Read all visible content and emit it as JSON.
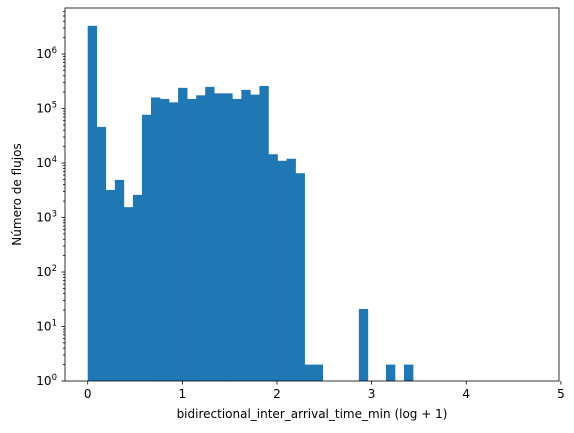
{
  "chart_data": {
    "type": "bar",
    "title": "",
    "xlabel": "bidirectional_inter_arrival_time_min (log + 1)",
    "ylabel": "Número de flujos",
    "xlim": [
      -0.24,
      4.98
    ],
    "ylim": [
      1,
      7000000
    ],
    "yscale": "log",
    "grid": false,
    "legend": "none",
    "bar_color": "#1f77b4",
    "bin_width": 0.0955,
    "bins": [
      {
        "x0": 0.0,
        "count": 3300000
      },
      {
        "x0": 0.0955,
        "count": 46000
      },
      {
        "x0": 0.191,
        "count": 3200
      },
      {
        "x0": 0.2865,
        "count": 4900
      },
      {
        "x0": 0.382,
        "count": 1550
      },
      {
        "x0": 0.4775,
        "count": 2600
      },
      {
        "x0": 0.573,
        "count": 77000
      },
      {
        "x0": 0.6685,
        "count": 160000
      },
      {
        "x0": 0.764,
        "count": 150000
      },
      {
        "x0": 0.8595,
        "count": 130000
      },
      {
        "x0": 0.955,
        "count": 240000
      },
      {
        "x0": 1.0505,
        "count": 150000
      },
      {
        "x0": 1.146,
        "count": 175000
      },
      {
        "x0": 1.2415,
        "count": 250000
      },
      {
        "x0": 1.337,
        "count": 190000
      },
      {
        "x0": 1.4325,
        "count": 190000
      },
      {
        "x0": 1.528,
        "count": 150000
      },
      {
        "x0": 1.6235,
        "count": 220000
      },
      {
        "x0": 1.719,
        "count": 180000
      },
      {
        "x0": 1.8145,
        "count": 260000
      },
      {
        "x0": 1.91,
        "count": 14500
      },
      {
        "x0": 2.0055,
        "count": 11000
      },
      {
        "x0": 2.101,
        "count": 12000
      },
      {
        "x0": 2.1965,
        "count": 6500
      },
      {
        "x0": 2.292,
        "count": 2
      },
      {
        "x0": 2.3875,
        "count": 2
      },
      {
        "x0": 2.865,
        "count": 21
      },
      {
        "x0": 3.1515,
        "count": 2
      },
      {
        "x0": 3.3425,
        "count": 2
      }
    ],
    "x_ticks": [
      {
        "value": 0,
        "label": "0"
      },
      {
        "value": 1,
        "label": "1"
      },
      {
        "value": 2,
        "label": "2"
      },
      {
        "value": 3,
        "label": "3"
      },
      {
        "value": 4,
        "label": "4"
      },
      {
        "value": 5,
        "label": "5"
      }
    ],
    "y_ticks": [
      {
        "value": 1,
        "base": "10",
        "exp": "0"
      },
      {
        "value": 10,
        "base": "10",
        "exp": "1"
      },
      {
        "value": 100,
        "base": "10",
        "exp": "2"
      },
      {
        "value": 1000,
        "base": "10",
        "exp": "3"
      },
      {
        "value": 10000,
        "base": "10",
        "exp": "4"
      },
      {
        "value": 100000,
        "base": "10",
        "exp": "5"
      },
      {
        "value": 1000000,
        "base": "10",
        "exp": "6"
      }
    ]
  }
}
